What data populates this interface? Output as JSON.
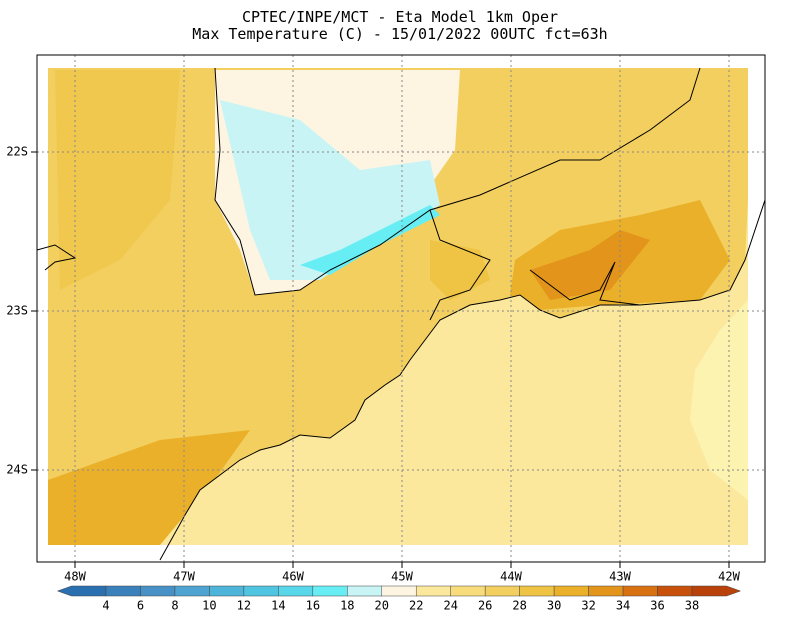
{
  "title": [
    "CPTEC/INPE/MCT -  Eta Model 1km Oper",
    "Max Temperature (C) - 15/01/2022 00UTC fct=63h"
  ],
  "latitude_labels": [
    "22S",
    "23S",
    "24S"
  ],
  "longitude_labels": [
    "48W",
    "47W",
    "46W",
    "45W",
    "44W",
    "43W",
    "42W"
  ],
  "colorbar": {
    "ticks": [
      4,
      6,
      8,
      10,
      12,
      14,
      16,
      18,
      20,
      22,
      24,
      26,
      28,
      30,
      32,
      34,
      36,
      38
    ],
    "colors": [
      "#2a6fb0",
      "#3a80bb",
      "#4791c6",
      "#4ea3d0",
      "#4db4da",
      "#4fc5e2",
      "#58d6ea",
      "#66eef4",
      "#c8f4f6",
      "#fdf5e2",
      "#fbe89c",
      "#f8dc7c",
      "#f3cf5f",
      "#efc343",
      "#eab02a",
      "#e3941a",
      "#d87112",
      "#c7500b",
      "#b8420a"
    ]
  }
}
